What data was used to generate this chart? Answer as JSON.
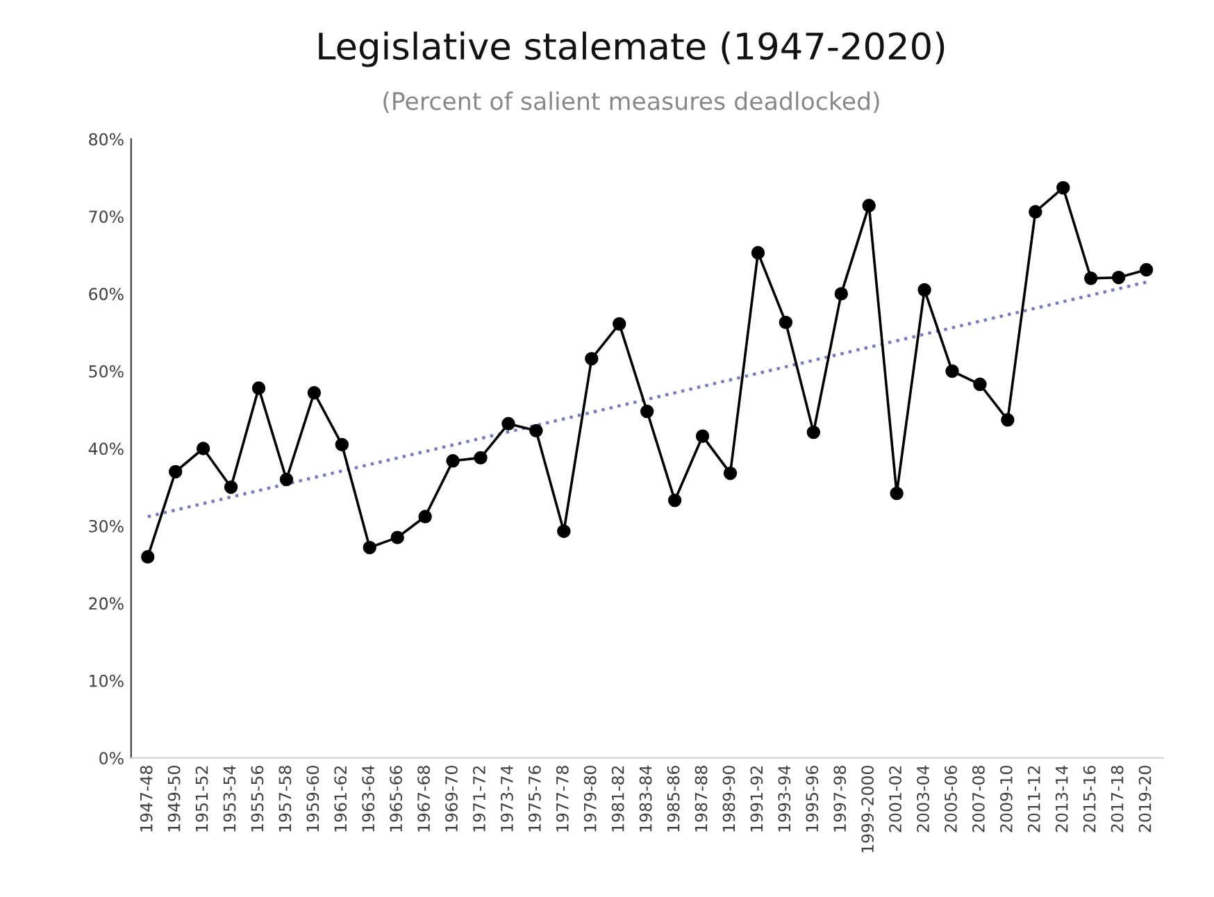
{
  "chart_data": {
    "type": "line",
    "title": "Legislative stalemate (1947-2020)",
    "subtitle": "(Percent of salient measures deadlocked)",
    "categories": [
      "1947-48",
      "1949-50",
      "1951-52",
      "1953-54",
      "1955-56",
      "1957-58",
      "1959-60",
      "1961-62",
      "1963-64",
      "1965-66",
      "1967-68",
      "1969-70",
      "1971-72",
      "1973-74",
      "1975-76",
      "1977-78",
      "1979-80",
      "1981-82",
      "1983-84",
      "1985-86",
      "1987-88",
      "1989-90",
      "1991-92",
      "1993-94",
      "1995-96",
      "1997-98",
      "1999-2000",
      "2001-02",
      "2003-04",
      "2005-06",
      "2007-08",
      "2009-10",
      "2011-12",
      "2013-14",
      "2015-16",
      "2017-18",
      "2019-20"
    ],
    "series": [
      {
        "color": "#000000",
        "marker": "circle",
        "line_style": "solid",
        "values": [
          26,
          37,
          40,
          35,
          47.8,
          36,
          47.2,
          40.5,
          27.2,
          28.5,
          31.2,
          38.4,
          38.8,
          43.2,
          42.3,
          29.3,
          51.6,
          56.1,
          44.8,
          33.3,
          41.6,
          36.8,
          65.3,
          56.3,
          42.1,
          60.0,
          71.4,
          34.2,
          60.5,
          50.0,
          48.3,
          43.7,
          70.6,
          73.7,
          62.0,
          62.1,
          63.1
        ]
      },
      {
        "type": "line",
        "color": "#7a7ab8",
        "marker": "none",
        "line_style": "dotted",
        "x": [
          "1947-48",
          "2019-20"
        ],
        "values": [
          31.2,
          61.5
        ]
      }
    ],
    "ylim": [
      0,
      80
    ],
    "yticks": [
      {
        "value": 0,
        "label": "0%"
      },
      {
        "value": 10,
        "label": "10%"
      },
      {
        "value": 20,
        "label": "20%"
      },
      {
        "value": 30,
        "label": "30%"
      },
      {
        "value": 40,
        "label": "40%"
      },
      {
        "value": 50,
        "label": "50%"
      },
      {
        "value": 60,
        "label": "60%"
      },
      {
        "value": 70,
        "label": "70%"
      },
      {
        "value": 80,
        "label": "80%"
      }
    ],
    "grid": false,
    "legend": false
  }
}
